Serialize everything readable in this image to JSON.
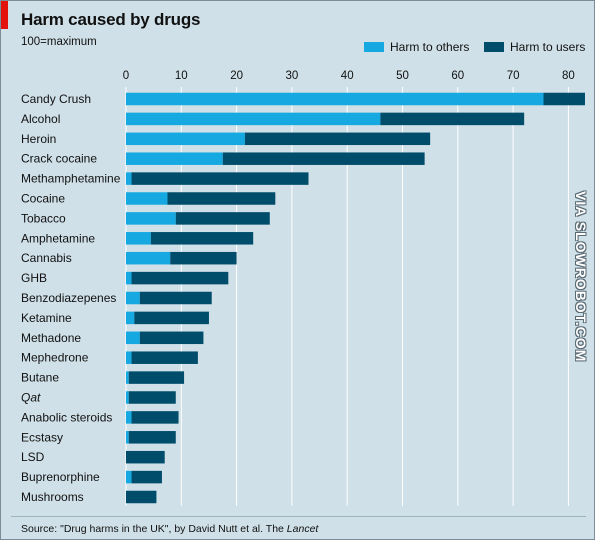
{
  "header": {
    "title": "Harm caused by drugs",
    "subtitle": "100=maximum"
  },
  "legend": {
    "others_label": "Harm to others",
    "users_label": "Harm to users"
  },
  "colors": {
    "others": "#16a9e1",
    "users": "#004d6b"
  },
  "source": {
    "prefix": "Source: \"Drug harms in the UK\", by David Nutt et al. The ",
    "journal": "Lancet"
  },
  "watermark": "VIA SLOWROBOT.COM",
  "chart_data": {
    "type": "bar",
    "orientation": "horizontal",
    "stacked": true,
    "xlim": [
      0,
      83
    ],
    "xticks": [
      0,
      10,
      20,
      30,
      40,
      50,
      60,
      70,
      80
    ],
    "grid": true,
    "legend_position": "top-right",
    "categories": [
      "Candy Crush",
      "Alcohol",
      "Heroin",
      "Crack cocaine",
      "Methamphetamine",
      "Cocaine",
      "Tobacco",
      "Amphetamine",
      "Cannabis",
      "GHB",
      "Benzodiazepenes",
      "Ketamine",
      "Methadone",
      "Mephedrone",
      "Butane",
      "Qat",
      "Anabolic steroids",
      "Ecstasy",
      "LSD",
      "Buprenorphine",
      "Mushrooms"
    ],
    "italic_categories": [
      "Qat"
    ],
    "series": [
      {
        "name": "Harm to others",
        "values": [
          75.5,
          46,
          21.5,
          17.5,
          1,
          7.5,
          9,
          4.5,
          8,
          1,
          2.5,
          1.5,
          2.5,
          1,
          0.5,
          0.5,
          1,
          0.5,
          0,
          1,
          0
        ]
      },
      {
        "name": "Harm to users",
        "values": [
          7.5,
          26,
          33.5,
          36.5,
          32,
          19.5,
          17,
          18.5,
          12,
          17.5,
          13,
          13.5,
          11.5,
          12,
          10,
          8.5,
          8.5,
          8.5,
          7,
          5.5,
          5.5
        ]
      }
    ]
  }
}
